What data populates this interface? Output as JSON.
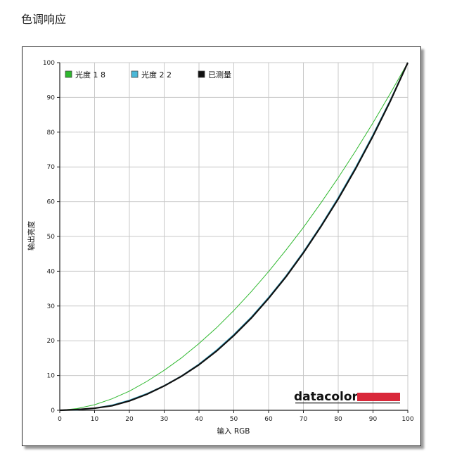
{
  "page": {
    "title": "色调响应"
  },
  "chart_data": {
    "type": "line",
    "title": "",
    "xlabel": "输入 RGB",
    "ylabel": "输出亮度",
    "xlim": [
      0,
      100
    ],
    "ylim": [
      0,
      100
    ],
    "xticks": [
      "0",
      "10",
      "20",
      "30",
      "40",
      "50",
      "60",
      "70",
      "80",
      "90",
      "100"
    ],
    "yticks": [
      "0",
      "10",
      "20",
      "30",
      "40",
      "50",
      "60",
      "70",
      "80",
      "90",
      "100"
    ],
    "grid": true,
    "legend_position": "top-left",
    "x": [
      0,
      5,
      10,
      15,
      20,
      25,
      30,
      35,
      40,
      45,
      50,
      55,
      60,
      65,
      70,
      75,
      80,
      85,
      90,
      95,
      100
    ],
    "series": [
      {
        "name": "光度 1 8",
        "color": "#2eb82e",
        "values": [
          0,
          0.5,
          1.6,
          3.3,
          5.5,
          8.3,
          11.5,
          15.1,
          19.2,
          23.7,
          28.7,
          34.1,
          39.9,
          46.1,
          52.6,
          59.6,
          66.9,
          74.6,
          82.7,
          91.2,
          100
        ]
      },
      {
        "name": "光度 2 2",
        "color": "#4ab8d8",
        "values": [
          0,
          0.1,
          0.6,
          1.5,
          2.9,
          4.8,
          7.1,
          9.9,
          13.3,
          17.3,
          21.8,
          26.8,
          32.5,
          38.7,
          45.6,
          53.1,
          61.2,
          69.9,
          79.3,
          89.3,
          100
        ]
      },
      {
        "name": "已测量",
        "color": "#111111",
        "values": [
          0,
          0.2,
          0.6,
          1.3,
          2.7,
          4.6,
          7.0,
          9.8,
          13.1,
          17.0,
          21.5,
          26.5,
          32.2,
          38.4,
          45.3,
          52.8,
          60.8,
          69.5,
          78.9,
          89.0,
          100
        ]
      }
    ]
  },
  "logo": {
    "text": "datacolor",
    "bar_color": "#d9283a"
  }
}
